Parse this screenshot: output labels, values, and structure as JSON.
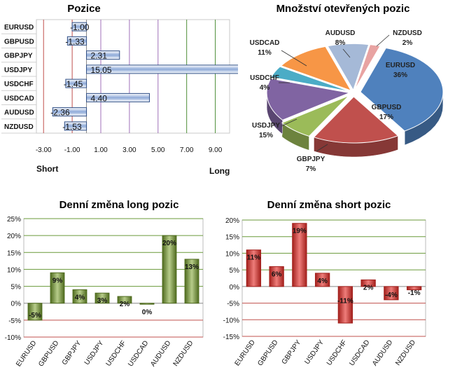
{
  "chart_data": [
    {
      "id": "positions",
      "type": "bar",
      "orientation": "horizontal",
      "title": "Pozice",
      "categories": [
        "EURUSD",
        "GBPUSD",
        "GBPJPY",
        "USDJPY",
        "USDCHF",
        "USDCAD",
        "AUDUSD",
        "NZDUSD"
      ],
      "values": [
        -1.0,
        -1.33,
        2.31,
        15.05,
        -1.45,
        4.4,
        -2.36,
        -1.53
      ],
      "value_labels": [
        "-1.00",
        "-1.33",
        "2.31",
        "15.05",
        "-1.45",
        "4.40",
        "-2.36",
        "-1.53"
      ],
      "xlim": [
        -3.5,
        10.0
      ],
      "x_ticks": [
        -3,
        -1,
        1,
        3,
        5,
        7,
        9
      ],
      "x_tick_labels": [
        "-3.00",
        "-1.00",
        "1.00",
        "3.00",
        "5.00",
        "7.00",
        "9.00"
      ],
      "short_label": "Short",
      "long_label": "Long",
      "colors": {
        "bar": "#8eaad8",
        "bar_dark": "#2f4f86",
        "grid_neg": "#c0504d",
        "grid_pos": "#4f8f3a",
        "grid_mid": "#a070b8"
      }
    },
    {
      "id": "open-positions",
      "type": "pie",
      "title": "Množství otevřených pozic",
      "slices": [
        {
          "name": "EURUSD",
          "value": 36,
          "label": "36%",
          "color": "#4f81bd"
        },
        {
          "name": "GBPUSD",
          "value": 17,
          "label": "17%",
          "color": "#c0504d"
        },
        {
          "name": "GBPJPY",
          "value": 7,
          "label": "7%",
          "color": "#9bbb59"
        },
        {
          "name": "USDJPY",
          "value": 15,
          "label": "15%",
          "color": "#8064a2"
        },
        {
          "name": "USDCHF",
          "value": 4,
          "label": "4%",
          "color": "#4bacc6"
        },
        {
          "name": "USDCAD",
          "value": 11,
          "label": "11%",
          "color": "#f79646"
        },
        {
          "name": "AUDUSD",
          "value": 8,
          "label": "8%",
          "color": "#a5b9d7"
        },
        {
          "name": "NZDUSD",
          "value": 2,
          "label": "2%",
          "color": "#e8a3a2"
        }
      ]
    },
    {
      "id": "daily-long",
      "type": "bar",
      "title": "Denní změna long pozic",
      "categories": [
        "EURUSD",
        "GBPUSD",
        "GBPJPY",
        "USDJPY",
        "USDCHF",
        "USDCAD",
        "AUDUSD",
        "NZDUSD"
      ],
      "values": [
        -5,
        9,
        4,
        3,
        2,
        0,
        20,
        13
      ],
      "value_labels": [
        "-5%",
        "9%",
        "4%",
        "3%",
        "2%",
        "0%",
        "20%",
        "13%"
      ],
      "ylim": [
        -10,
        25
      ],
      "y_ticks": [
        -10,
        -5,
        0,
        5,
        10,
        15,
        20,
        25
      ],
      "y_tick_labels": [
        "-10%",
        "-5%",
        "0%",
        "5%",
        "10%",
        "15%",
        "20%",
        "25%"
      ],
      "colors": {
        "bar_light": "#b7cc8a",
        "bar_dark": "#4f6b1f",
        "grid": "#6a9a3a",
        "grid_neg": "#c0504d"
      }
    },
    {
      "id": "daily-short",
      "type": "bar",
      "title": "Denní změna short pozic",
      "categories": [
        "EURUSD",
        "GBPUSD",
        "GBPJPY",
        "USDJPY",
        "USDCHF",
        "USDCAD",
        "AUDUSD",
        "NZDUSD"
      ],
      "values": [
        11,
        6,
        19,
        4,
        -11,
        2,
        -4,
        -1
      ],
      "value_labels": [
        "11%",
        "6%",
        "19%",
        "4%",
        "-11%",
        "2%",
        "-4%",
        "-1%"
      ],
      "ylim": [
        -15,
        20
      ],
      "y_ticks": [
        -15,
        -10,
        -5,
        0,
        5,
        10,
        15,
        20
      ],
      "y_tick_labels": [
        "-15%",
        "-10%",
        "-5%",
        "0%",
        "5%",
        "10%",
        "15%",
        "20%"
      ],
      "colors": {
        "bar_light": "#ee7d7a",
        "bar_dark": "#a3201c",
        "grid": "#6a9a3a",
        "grid_neg": "#c0504d"
      }
    }
  ]
}
